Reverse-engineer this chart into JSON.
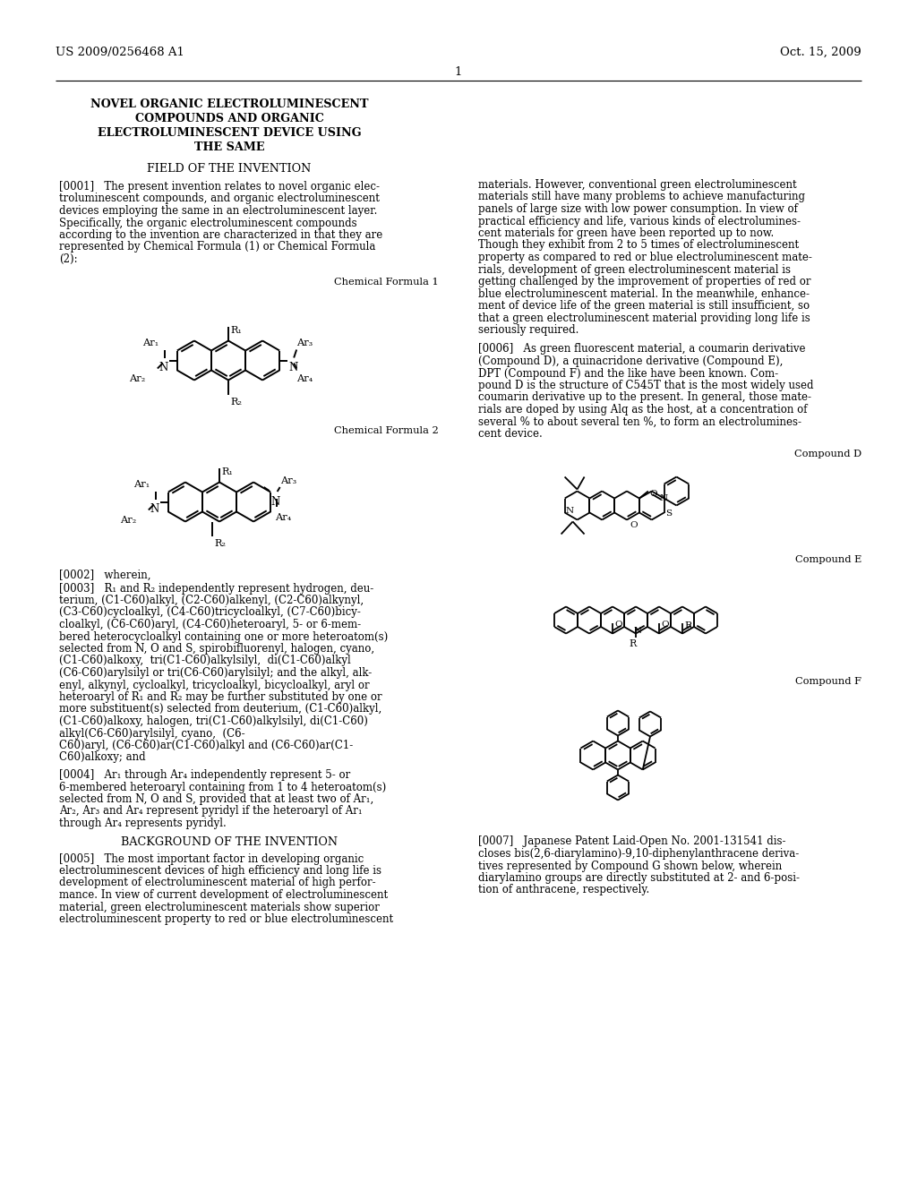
{
  "bg": "#ffffff",
  "header_left": "US 2009/0256468 A1",
  "header_right": "Oct. 15, 2009",
  "page_num": "1",
  "title": [
    "NOVEL ORGANIC ELECTROLUMINESCENT",
    "COMPOUNDS AND ORGANIC",
    "ELECTROLUMINESCENT DEVICE USING",
    "THE SAME"
  ],
  "sec1": "FIELD OF THE INVENTION",
  "p0001": [
    "[0001]   The present invention relates to novel organic elec-",
    "troluminescent compounds, and organic electroluminescent",
    "devices employing the same in an electroluminescent layer.",
    "Specifically, the organic electroluminescent compounds",
    "according to the invention are characterized in that they are",
    "represented by Chemical Formula (1) or Chemical Formula",
    "(2):"
  ],
  "cf1_label": "Chemical Formula 1",
  "cf2_label": "Chemical Formula 2",
  "p0002": "[0002]   wherein,",
  "p0003": [
    "[0003]   R₁ and R₂ independently represent hydrogen, deu-",
    "terium, (C1-C60)alkyl, (C2-C60)alkenyl, (C2-C60)alkynyl,",
    "(C3-C60)cycloalkyl, (C4-C60)tricycloalkyl, (C7-C60)bicy-",
    "cloalkyl, (C6-C60)aryl, (C4-C60)heteroaryl, 5- or 6-mem-",
    "bered heterocycloalkyl containing one or more heteroatom(s)",
    "selected from N, O and S, spirobifluorenyl, halogen, cyano,",
    "(C1-C60)alkoxy,  tri(C1-C60)alkylsilyl,  di(C1-C60)alkyl",
    "(C6-C60)arylsilyl or tri(C6-C60)arylsilyl; and the alkyl, alk-",
    "enyl, alkynyl, cycloalkyl, tricycloalkyl, bicycloalkyl, aryl or",
    "heteroaryl of R₁ and R₂ may be further substituted by one or",
    "more substituent(s) selected from deuterium, (C1-C60)alkyl,",
    "(C1-C60)alkoxy, halogen, tri(C1-C60)alkylsilyl, di(C1-C60)",
    "alkyl(C6-C60)arylsilyl, cyano,  (C6-",
    "C60)aryl, (C6-C60)ar(C1-C60)alkyl and (C6-C60)ar(C1-",
    "C60)alkoxy; and"
  ],
  "p0004": [
    "[0004]   Ar₁ through Ar₄ independently represent 5- or",
    "6-membered heteroaryl containing from 1 to 4 heteroatom(s)",
    "selected from N, O and S, provided that at least two of Ar₁,",
    "Ar₂, Ar₃ and Ar₄ represent pyridyl if the heteroaryl of Ar₁",
    "through Ar₄ represents pyridyl."
  ],
  "sec2": "BACKGROUND OF THE INVENTION",
  "p0005L": [
    "[0005]   The most important factor in developing organic",
    "electroluminescent devices of high efficiency and long life is",
    "development of electroluminescent material of high perfor-",
    "mance. In view of current development of electroluminescent",
    "material, green electroluminescent materials show superior",
    "electroluminescent property to red or blue electroluminescent"
  ],
  "p0005R": [
    "materials. However, conventional green electroluminescent",
    "materials still have many problems to achieve manufacturing",
    "panels of large size with low power consumption. In view of",
    "practical efficiency and life, various kinds of electrolumines-",
    "cent materials for green have been reported up to now.",
    "Though they exhibit from 2 to 5 times of electroluminescent",
    "property as compared to red or blue electroluminescent mate-",
    "rials, development of green electroluminescent material is",
    "getting challenged by the improvement of properties of red or",
    "blue electroluminescent material. In the meanwhile, enhance-",
    "ment of device life of the green material is still insufficient, so",
    "that a green electroluminescent material providing long life is",
    "seriously required."
  ],
  "p0006R": [
    "[0006]   As green fluorescent material, a coumarin derivative",
    "(Compound D), a quinacridone derivative (Compound E),",
    "DPT (Compound F) and the like have been known. Com-",
    "pound D is the structure of C545T that is the most widely used",
    "coumarin derivative up to the present. In general, those mate-",
    "rials are doped by using Alq as the host, at a concentration of",
    "several % to about several ten %, to form an electrolumines-",
    "cent device."
  ],
  "lbl_D": "Compound D",
  "lbl_E": "Compound E",
  "lbl_F": "Compound F",
  "p0007R": [
    "[0007]   Japanese Patent Laid-Open No. 2001-131541 dis-",
    "closes bis(2,6-diarylamino)-9,10-diphenylanthracene deriva-",
    "tives represented by Compound G shown below, wherein",
    "diarylamino groups are directly substituted at 2- and 6-posi-",
    "tion of anthracene, respectively."
  ]
}
